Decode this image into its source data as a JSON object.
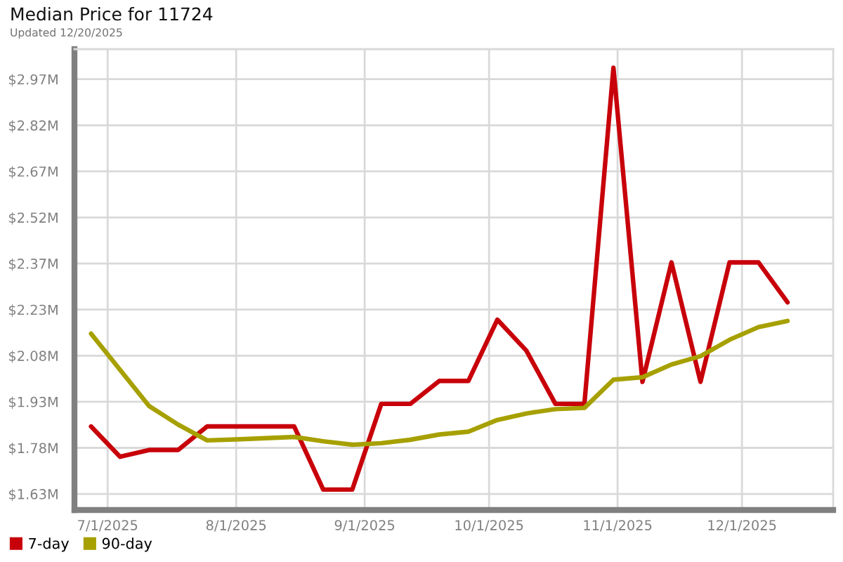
{
  "chart_data": {
    "type": "line",
    "title": "Median Price for 11724",
    "subtitle": "Updated 12/20/2025",
    "x": [
      "2025-06-27",
      "2025-07-04",
      "2025-07-11",
      "2025-07-18",
      "2025-07-25",
      "2025-08-01",
      "2025-08-08",
      "2025-08-15",
      "2025-08-22",
      "2025-08-29",
      "2025-09-05",
      "2025-09-12",
      "2025-09-19",
      "2025-09-26",
      "2025-10-03",
      "2025-10-10",
      "2025-10-17",
      "2025-10-24",
      "2025-10-31",
      "2025-11-07",
      "2025-11-14",
      "2025-11-21",
      "2025-11-28",
      "2025-12-05",
      "2025-12-12"
    ],
    "series": [
      {
        "name": "7-day",
        "color": "#c8000a",
        "values": [
          1.848,
          1.75,
          1.772,
          1.772,
          1.848,
          1.848,
          1.848,
          1.848,
          1.644,
          1.644,
          1.921,
          1.921,
          1.995,
          1.995,
          2.193,
          2.093,
          1.921,
          1.921,
          3.007,
          1.992,
          2.378,
          1.992,
          2.378,
          2.378,
          2.249
        ]
      },
      {
        "name": "90-day",
        "color": "#a6a000",
        "values": [
          2.148,
          2.031,
          1.914,
          1.854,
          1.803,
          1.806,
          1.81,
          1.814,
          1.8,
          1.789,
          1.794,
          1.805,
          1.822,
          1.831,
          1.869,
          1.89,
          1.904,
          1.908,
          1.999,
          2.007,
          2.048,
          2.075,
          2.128,
          2.169,
          2.189
        ]
      }
    ],
    "xlim": [
      "2025-06-23",
      "2025-12-23"
    ],
    "xticks": [
      {
        "value": "2025-07-01",
        "label": "7/1/2025"
      },
      {
        "value": "2025-08-01",
        "label": "8/1/2025"
      },
      {
        "value": "2025-09-01",
        "label": "9/1/2025"
      },
      {
        "value": "2025-10-01",
        "label": "10/1/2025"
      },
      {
        "value": "2025-11-01",
        "label": "11/1/2025"
      },
      {
        "value": "2025-12-01",
        "label": "12/1/2025"
      }
    ],
    "ylim": [
      1.578,
      3.067
    ],
    "yticks": [
      {
        "value": 1.63,
        "label": "$1.63M"
      },
      {
        "value": 1.7789,
        "label": "$1.78M"
      },
      {
        "value": 1.9278,
        "label": "$1.93M"
      },
      {
        "value": 2.0767,
        "label": "$2.08M"
      },
      {
        "value": 2.2256,
        "label": "$2.23M"
      },
      {
        "value": 2.3744,
        "label": "$2.37M"
      },
      {
        "value": 2.5233,
        "label": "$2.52M"
      },
      {
        "value": 2.6722,
        "label": "$2.67M"
      },
      {
        "value": 2.8211,
        "label": "$2.82M"
      },
      {
        "value": 2.97,
        "label": "$2.97M"
      }
    ],
    "grid": true,
    "legend": "bottom left"
  }
}
